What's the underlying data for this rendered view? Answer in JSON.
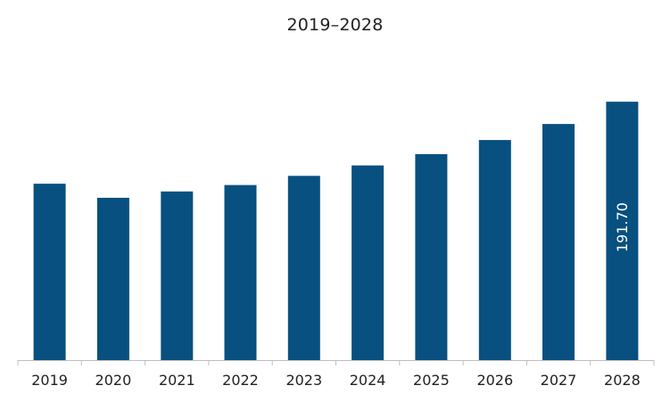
{
  "chart_data": {
    "type": "bar",
    "title": "2019–2028",
    "xlabel": "",
    "ylabel": "",
    "categories": [
      "2019",
      "2020",
      "2021",
      "2022",
      "2023",
      "2024",
      "2025",
      "2026",
      "2027",
      "2028"
    ],
    "values": [
      130.9,
      120.4,
      125.1,
      129.9,
      136.7,
      144.4,
      152.8,
      163.3,
      175.2,
      191.7
    ],
    "data_labels": [
      {
        "category": "2028",
        "text": "191.70"
      }
    ],
    "ylim": [
      0,
      205
    ],
    "grid": false,
    "legend": "none",
    "colors": {
      "bar": "#08507f",
      "axis": "#bfbfbf",
      "text": "#222222",
      "data_label": "#ffffff"
    }
  }
}
